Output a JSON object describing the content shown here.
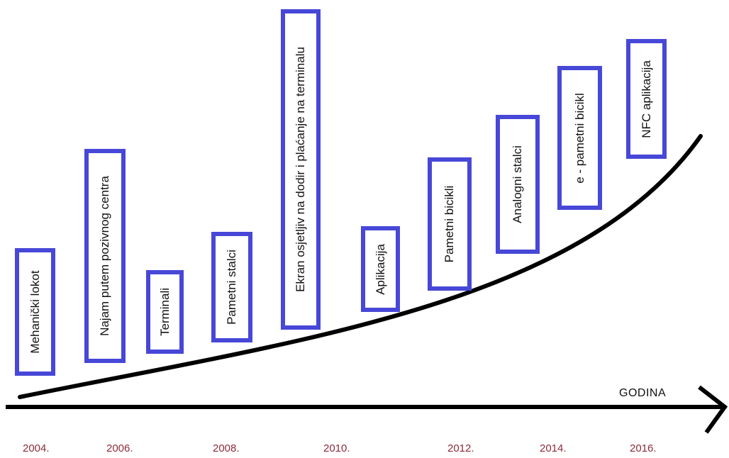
{
  "axis": {
    "label": "GODINA"
  },
  "years": [
    "2004.",
    "2006.",
    "2008.",
    "2010.",
    "2012.",
    "2014.",
    "2016."
  ],
  "milestones": [
    {
      "label": "Mehanički lokot"
    },
    {
      "label": "Najam putem pozivnog centra"
    },
    {
      "label": "Terminali"
    },
    {
      "label": "Pametni stalci"
    },
    {
      "label": "Ekran osjetljiv na dodir i plaćanje na terminalu"
    },
    {
      "label": "Aplikacija"
    },
    {
      "label": "Pametni bicikli"
    },
    {
      "label": "Analogni stalci"
    },
    {
      "label": "e - pametni bicikl"
    },
    {
      "label": "NFC aplikacija"
    }
  ],
  "colors": {
    "box_border": "#4747d8",
    "year_text": "#8b2b3a",
    "lines": "#000000"
  }
}
